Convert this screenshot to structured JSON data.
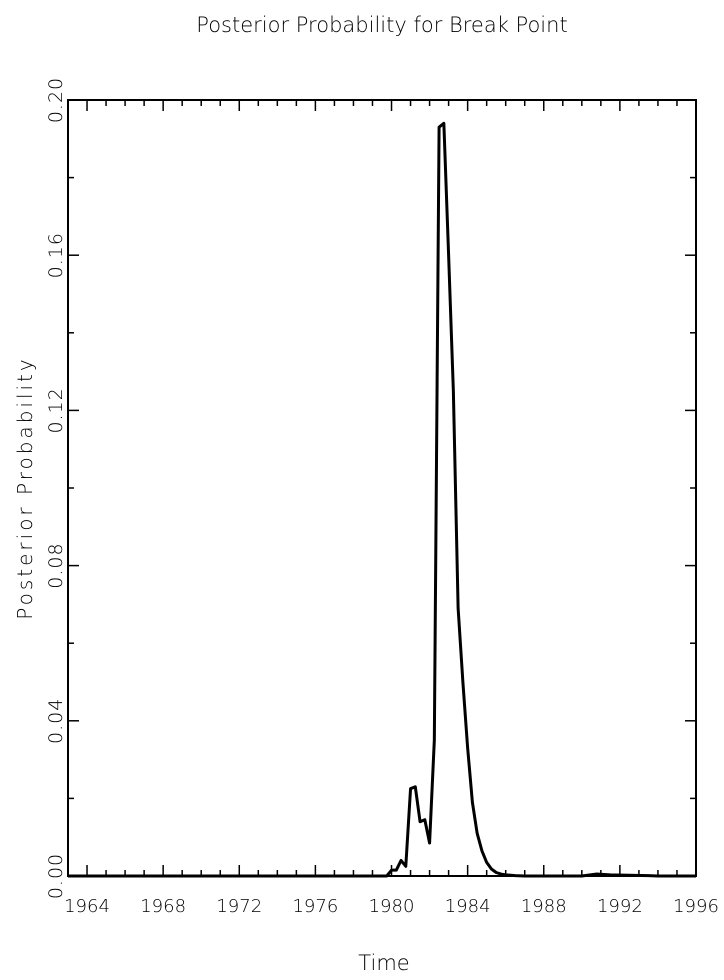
{
  "chart_data": {
    "type": "line",
    "title": "Posterior Probability for Break Point",
    "xlabel": "Time",
    "ylabel": "Posterior Probability",
    "xlim": [
      1963,
      1996
    ],
    "ylim": [
      0,
      0.2
    ],
    "x_ticks": [
      1964,
      1968,
      1972,
      1976,
      1980,
      1984,
      1988,
      1992,
      1996
    ],
    "x_tick_labels": [
      "1964",
      "1968",
      "1972",
      "1976",
      "1980",
      "1984",
      "1988",
      "1992",
      "1996"
    ],
    "y_ticks": [
      0,
      0.04,
      0.08,
      0.12,
      0.16,
      0.2
    ],
    "y_tick_labels": [
      "0.00",
      "0.04",
      "0.08",
      "0.12",
      "0.16",
      "0.20"
    ],
    "grid": false,
    "series": [
      {
        "color": "#000000",
        "x": [
          1963.0,
          1979.75,
          1980.0,
          1980.25,
          1980.5,
          1980.75,
          1981.0,
          1981.25,
          1981.5,
          1981.75,
          1982.0,
          1982.25,
          1982.5,
          1982.75,
          1983.0,
          1983.25,
          1983.5,
          1983.75,
          1984.0,
          1984.25,
          1984.5,
          1984.75,
          1985.0,
          1985.25,
          1985.5,
          1985.75,
          1986.0,
          1986.5,
          1987.0,
          1988.0,
          1990.0,
          1990.75,
          1991.5,
          1992.5,
          1993.5,
          1994.0,
          1996.0
        ],
        "y": [
          0.0,
          0.0,
          0.0015,
          0.0015,
          0.004,
          0.0025,
          0.0225,
          0.023,
          0.014,
          0.0145,
          0.0085,
          0.035,
          0.193,
          0.194,
          0.16,
          0.125,
          0.069,
          0.05,
          0.033,
          0.019,
          0.011,
          0.0065,
          0.0035,
          0.0018,
          0.0009,
          0.0005,
          0.0003,
          0.0001,
          0.0,
          0.0,
          0.0,
          0.0005,
          0.0003,
          0.0002,
          0.0001,
          0.0,
          0.0
        ]
      }
    ]
  }
}
